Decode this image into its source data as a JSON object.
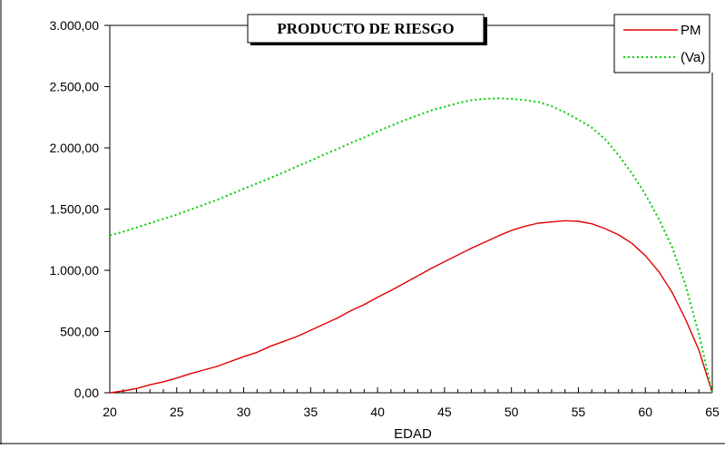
{
  "chart_data": {
    "type": "line",
    "title": "PRODUCTO DE RIESGO",
    "xlabel": "EDAD",
    "ylabel": "",
    "xlim": [
      20,
      65
    ],
    "ylim": [
      0,
      3000
    ],
    "x_ticks": [
      20,
      25,
      30,
      35,
      40,
      45,
      50,
      55,
      60,
      65
    ],
    "y_ticks": [
      0,
      500,
      1000,
      1500,
      2000,
      2500,
      3000
    ],
    "y_tick_labels": [
      "0,00",
      "500,00",
      "1.000,00",
      "1.500,00",
      "2.000,00",
      "2.500,00",
      "3.000,00"
    ],
    "grid": false,
    "legend_position": "top-right",
    "series": [
      {
        "name": "PM",
        "color": "#e00000",
        "style": "solid",
        "x": [
          20,
          21,
          22,
          23,
          24,
          25,
          26,
          27,
          28,
          29,
          30,
          31,
          32,
          33,
          34,
          35,
          36,
          37,
          38,
          39,
          40,
          41,
          42,
          43,
          44,
          45,
          46,
          47,
          48,
          49,
          50,
          51,
          52,
          53,
          54,
          55,
          56,
          57,
          58,
          59,
          60,
          61,
          62,
          63,
          64,
          65
        ],
        "values": [
          0,
          15,
          35,
          65,
          90,
          120,
          155,
          185,
          215,
          255,
          295,
          330,
          380,
          420,
          460,
          510,
          560,
          610,
          670,
          720,
          780,
          835,
          895,
          955,
          1015,
          1070,
          1125,
          1180,
          1230,
          1280,
          1325,
          1360,
          1385,
          1395,
          1405,
          1400,
          1380,
          1340,
          1290,
          1220,
          1120,
          990,
          820,
          600,
          350,
          0
        ]
      },
      {
        "name": "(Va)",
        "color": "#00cc00",
        "style": "dotted",
        "x": [
          20,
          21,
          22,
          23,
          24,
          25,
          26,
          27,
          28,
          29,
          30,
          31,
          32,
          33,
          34,
          35,
          36,
          37,
          38,
          39,
          40,
          41,
          42,
          43,
          44,
          45,
          46,
          47,
          48,
          49,
          50,
          51,
          52,
          53,
          54,
          55,
          56,
          57,
          58,
          59,
          60,
          61,
          62,
          63,
          64,
          65
        ],
        "values": [
          1285,
          1315,
          1350,
          1385,
          1420,
          1455,
          1495,
          1535,
          1575,
          1620,
          1665,
          1710,
          1755,
          1800,
          1850,
          1895,
          1945,
          1990,
          2040,
          2085,
          2135,
          2180,
          2225,
          2265,
          2305,
          2335,
          2365,
          2390,
          2400,
          2405,
          2400,
          2390,
          2375,
          2340,
          2290,
          2230,
          2165,
          2070,
          1940,
          1790,
          1620,
          1420,
          1190,
          880,
          480,
          0
        ]
      }
    ]
  }
}
